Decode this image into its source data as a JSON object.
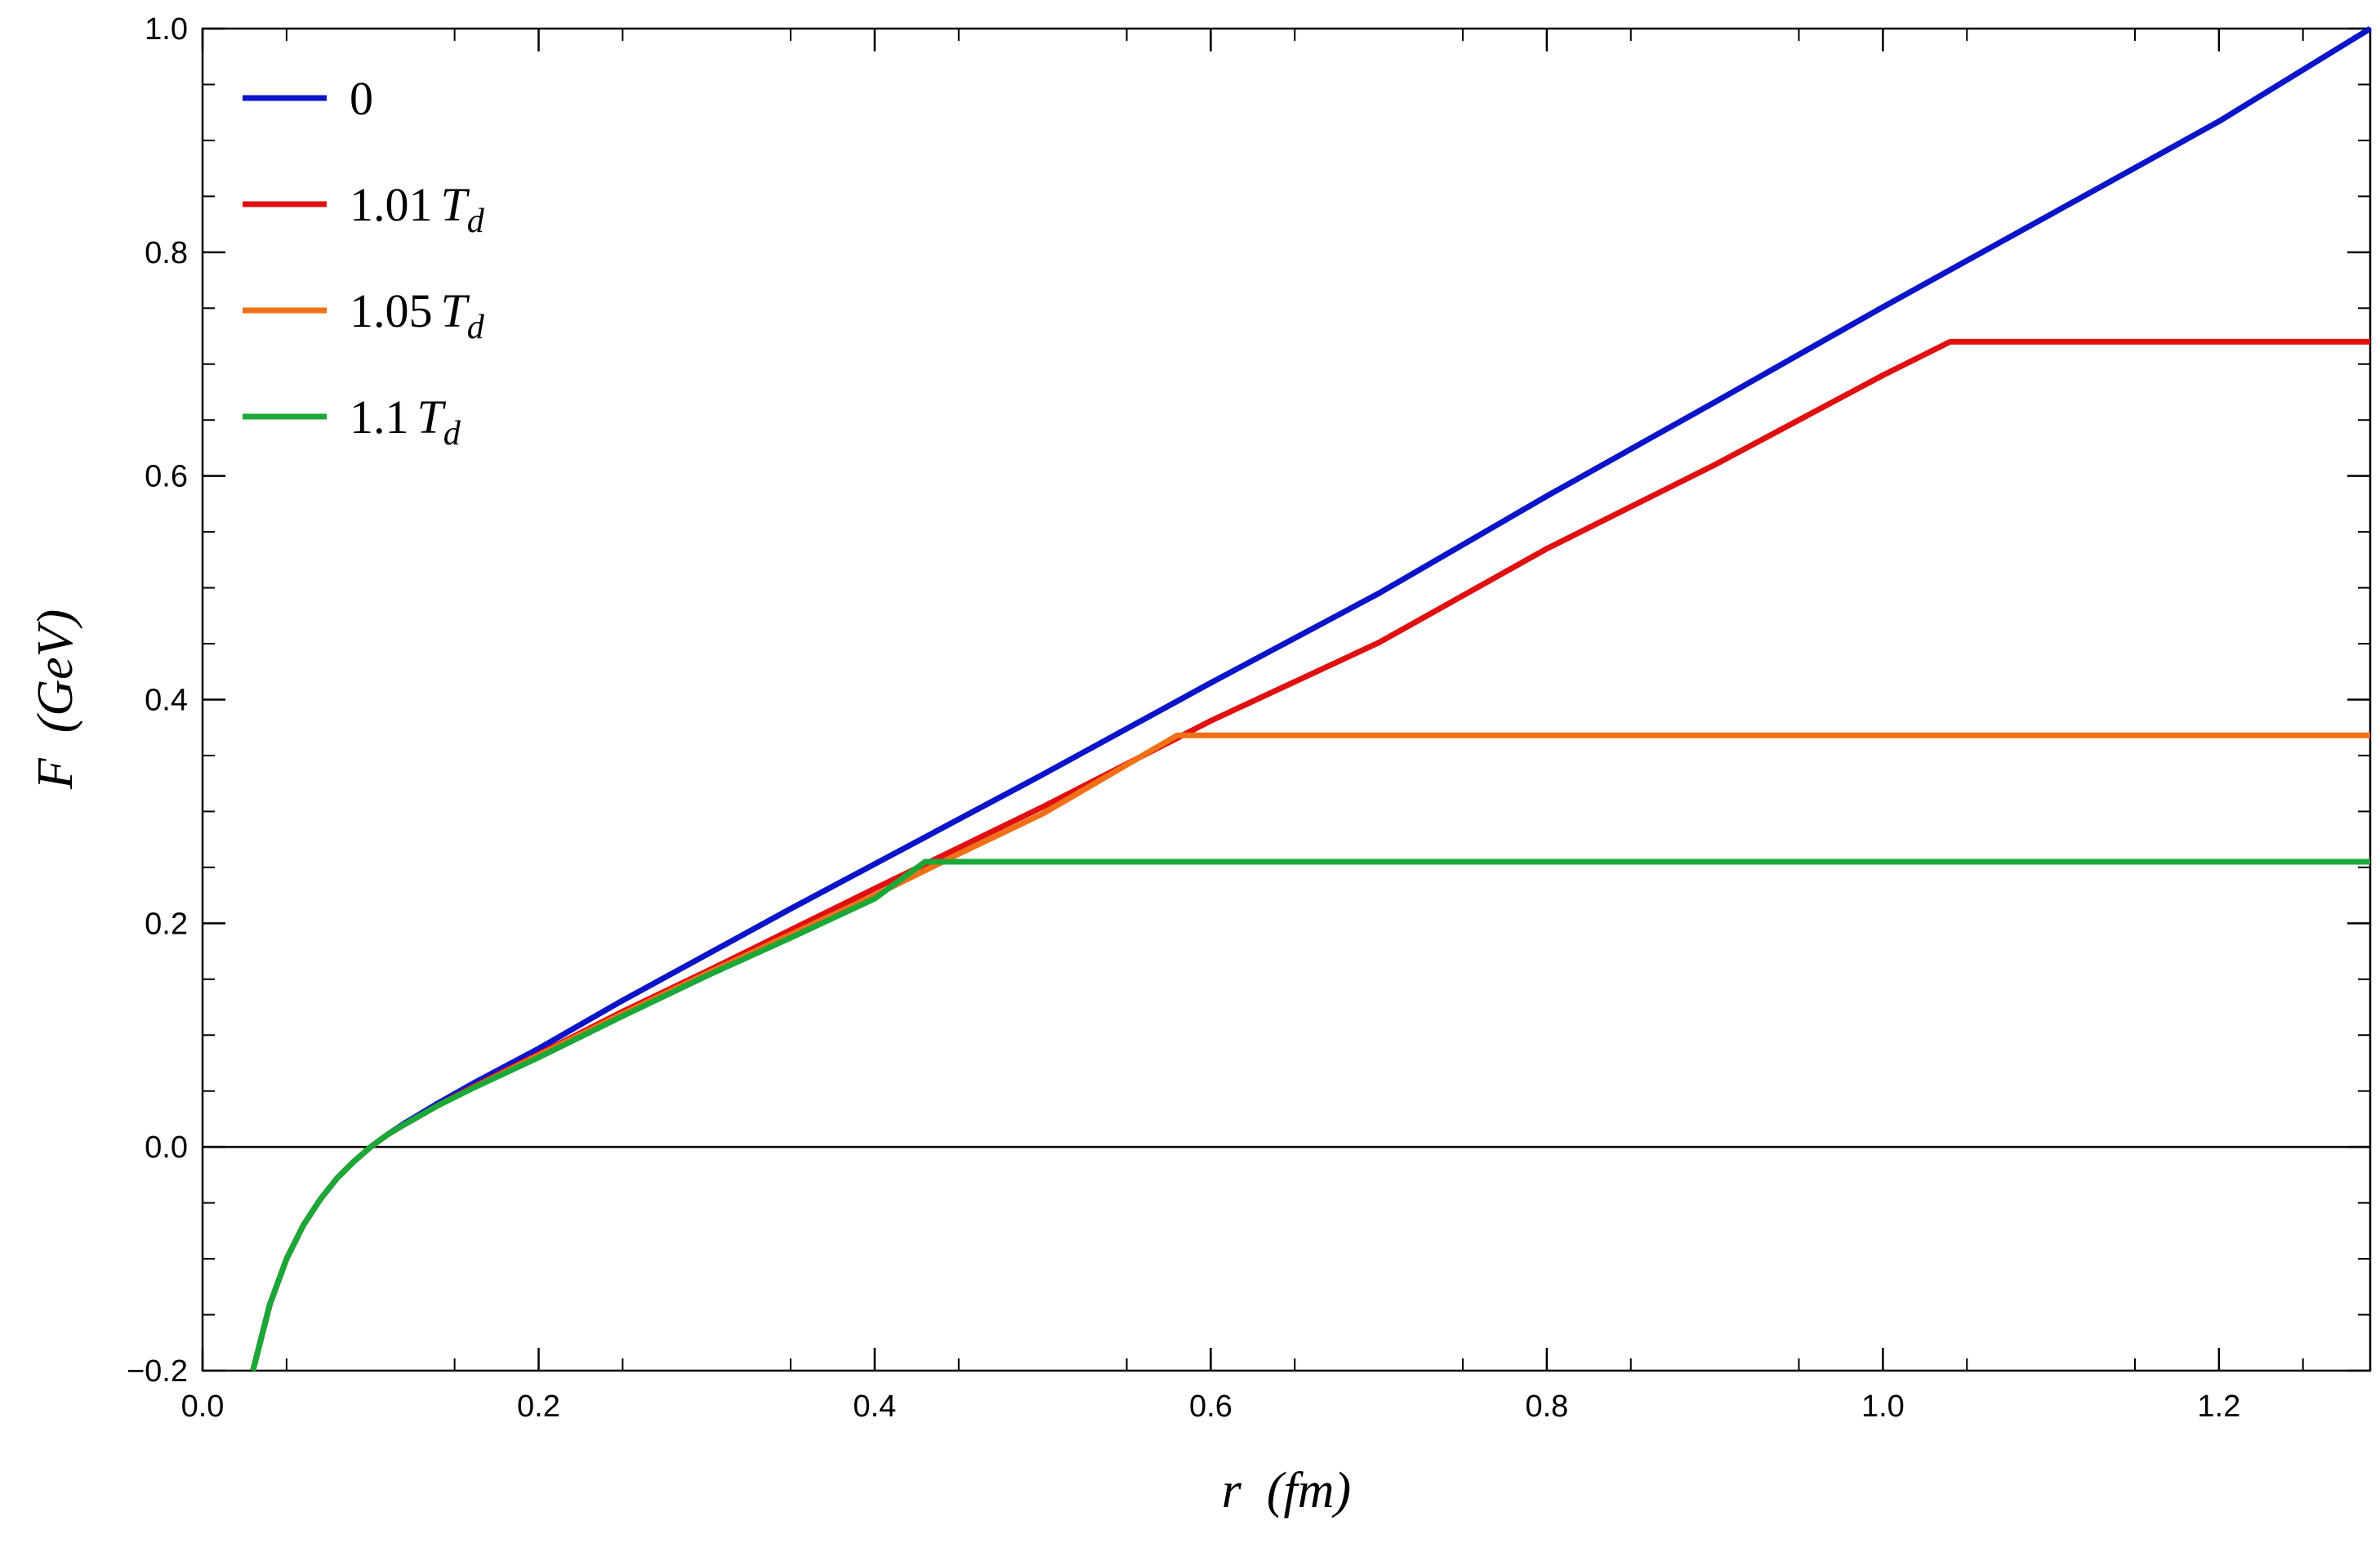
{
  "chart_data": {
    "type": "line",
    "xlabel": "r  (fm)",
    "ylabel": "F  (GeV)",
    "xlim": [
      0.0,
      1.29
    ],
    "ylim": [
      -0.2,
      1.0
    ],
    "x_ticks": [
      0.0,
      0.2,
      0.4,
      0.6,
      0.8,
      1.0,
      1.2
    ],
    "x_tick_labels": [
      "0.0",
      "0.2",
      "0.4",
      "0.6",
      "0.8",
      "1.0",
      "1.2"
    ],
    "y_ticks": [
      -0.2,
      0.0,
      0.2,
      0.4,
      0.6,
      0.8,
      1.0
    ],
    "y_tick_labels": [
      "−0.2",
      "0.0",
      "0.2",
      "0.4",
      "0.6",
      "0.8",
      "1.0"
    ],
    "grid": false,
    "zero_line": true,
    "legend_position": "top-left",
    "series": [
      {
        "name": "0",
        "color": "#0a14c8",
        "x": [
          0.03,
          0.04,
          0.05,
          0.06,
          0.07,
          0.08,
          0.09,
          0.1,
          0.11,
          0.12,
          0.14,
          0.16,
          0.18,
          0.2,
          0.25,
          0.3,
          0.35,
          0.4,
          0.5,
          0.6,
          0.7,
          0.8,
          0.9,
          1.0,
          1.1,
          1.2,
          1.29
        ],
        "y": [
          -0.2,
          -0.141,
          -0.1,
          -0.07,
          -0.047,
          -0.028,
          -0.013,
          0.0,
          0.011,
          0.021,
          0.039,
          0.056,
          0.072,
          0.088,
          0.131,
          0.172,
          0.213,
          0.253,
          0.333,
          0.415,
          0.495,
          0.582,
          0.666,
          0.751,
          0.834,
          0.917,
          1.0
        ]
      },
      {
        "name": "1.01",
        "name_sub": "T",
        "name_subscript": "d",
        "color": "#e01010",
        "x": [
          0.03,
          0.04,
          0.05,
          0.06,
          0.07,
          0.08,
          0.09,
          0.1,
          0.11,
          0.12,
          0.14,
          0.16,
          0.18,
          0.2,
          0.25,
          0.3,
          0.35,
          0.4,
          0.5,
          0.6,
          0.7,
          0.8,
          0.9,
          1.0,
          1.04,
          1.29
        ],
        "y": [
          -0.2,
          -0.141,
          -0.1,
          -0.07,
          -0.047,
          -0.028,
          -0.013,
          0.0,
          0.011,
          0.02,
          0.037,
          0.053,
          0.068,
          0.083,
          0.121,
          0.157,
          0.194,
          0.231,
          0.304,
          0.381,
          0.451,
          0.535,
          0.61,
          0.69,
          0.72,
          0.72
        ]
      },
      {
        "name": "1.05",
        "name_sub": "T",
        "name_subscript": "d",
        "color": "#f07018",
        "x": [
          0.03,
          0.04,
          0.05,
          0.06,
          0.07,
          0.08,
          0.09,
          0.1,
          0.11,
          0.12,
          0.14,
          0.16,
          0.18,
          0.2,
          0.25,
          0.3,
          0.35,
          0.4,
          0.45,
          0.5,
          0.58,
          1.29
        ],
        "y": [
          -0.2,
          -0.141,
          -0.1,
          -0.07,
          -0.047,
          -0.028,
          -0.013,
          0.0,
          0.011,
          0.02,
          0.037,
          0.052,
          0.067,
          0.082,
          0.119,
          0.155,
          0.19,
          0.225,
          0.262,
          0.298,
          0.368,
          0.368
        ]
      },
      {
        "name": "1.1",
        "name_sub": "T",
        "name_subscript": "d",
        "color": "#1aa838",
        "x": [
          0.03,
          0.04,
          0.05,
          0.06,
          0.07,
          0.08,
          0.09,
          0.1,
          0.11,
          0.12,
          0.14,
          0.16,
          0.18,
          0.2,
          0.25,
          0.3,
          0.35,
          0.4,
          0.43,
          1.29
        ],
        "y": [
          -0.2,
          -0.141,
          -0.1,
          -0.07,
          -0.047,
          -0.028,
          -0.013,
          0.0,
          0.011,
          0.02,
          0.037,
          0.052,
          0.066,
          0.08,
          0.117,
          0.153,
          0.187,
          0.222,
          0.255,
          0.255
        ]
      }
    ]
  }
}
